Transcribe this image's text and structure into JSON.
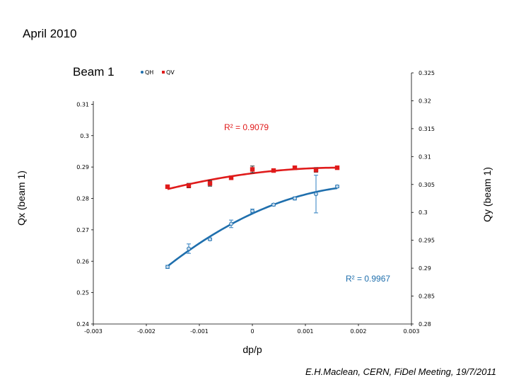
{
  "slide": {
    "title": "April 2010",
    "footer": "E.H.Maclean, CERN, FiDel Meeting, 19/7/2011"
  },
  "chart_data": {
    "type": "scatter",
    "title": "Beam 1",
    "xlabel": "dp/p",
    "ylabel_left": "Qx (beam 1)",
    "ylabel_right": "Qy (beam 1)",
    "xlim": [
      -0.003,
      0.003
    ],
    "ylim_left": [
      0.24,
      0.32
    ],
    "ylim_right": [
      0.28,
      0.325
    ],
    "x_ticks": [
      "-0.003",
      "-0.002",
      "-0.001",
      "0",
      "0.001",
      "0.002",
      "0.003"
    ],
    "y_left_ticks": [
      "0.24",
      "0.25",
      "0.26",
      "0.27",
      "0.28",
      "0.29",
      "0.3",
      "0.31"
    ],
    "y_right_ticks": [
      "0.28",
      "0.285",
      "0.29",
      "0.295",
      "0.3",
      "0.305",
      "0.31",
      "0.315",
      "0.32",
      "0.325"
    ],
    "legend": [
      "QH",
      "QV"
    ],
    "legend_position": "top-left",
    "colors": {
      "qh": "#1f6fad",
      "qv": "#e01b1b"
    },
    "series": [
      {
        "name": "QH",
        "axis": "left",
        "x": [
          -0.0016,
          -0.0012,
          -0.0008,
          -0.0004,
          0.0,
          0.0004,
          0.0008,
          0.0012,
          0.0016
        ],
        "y": [
          0.2582,
          0.264,
          0.267,
          0.2719,
          0.276,
          0.278,
          0.28,
          0.2814,
          0.2838
        ],
        "error": [
          0.0005,
          0.0015,
          0.0004,
          0.0012,
          0.0006,
          0.0004,
          0.0005,
          0.006,
          0.0004
        ]
      },
      {
        "name": "QV",
        "axis": "right",
        "x": [
          -0.0016,
          -0.0012,
          -0.0008,
          -0.0004,
          0.0,
          0.0004,
          0.0008,
          0.0012,
          0.0016
        ],
        "y": [
          0.3046,
          0.3048,
          0.3052,
          0.3062,
          0.3077,
          0.3075,
          0.308,
          0.3076,
          0.308
        ],
        "error": [
          0.0003,
          0.0004,
          0.0005,
          0.0003,
          0.0006,
          0.0003,
          0.0003,
          0.0004,
          0.0003
        ]
      }
    ],
    "annotations": [
      {
        "text": "R² = 0.9079",
        "color": "#e01b1b"
      },
      {
        "text": "R² = 0.9967",
        "color": "#1f6fad"
      }
    ]
  }
}
